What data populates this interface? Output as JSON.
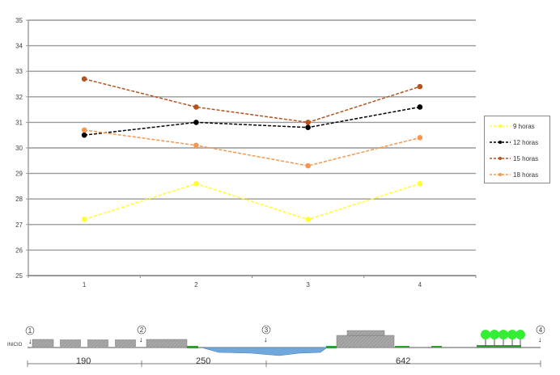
{
  "chart_data": {
    "type": "line",
    "title": "",
    "xlabel": "",
    "ylabel": "",
    "categories": [
      "1",
      "2",
      "3",
      "4"
    ],
    "ylim": [
      25,
      35
    ],
    "yticks": [
      "25",
      "26",
      "27",
      "28",
      "29",
      "30",
      "31",
      "32",
      "33",
      "34",
      "35"
    ],
    "grid": true,
    "legend_position": "right",
    "series": [
      {
        "name": "9 horas",
        "color": "#ffff33",
        "values": [
          27.2,
          28.6,
          27.2,
          28.6
        ]
      },
      {
        "name": "12 horas",
        "color": "#000000",
        "values": [
          30.5,
          31.0,
          30.8,
          31.6
        ]
      },
      {
        "name": "15 horas",
        "color": "#b5531f",
        "values": [
          32.7,
          31.6,
          31.0,
          32.4
        ]
      },
      {
        "name": "18 horas",
        "color": "#f7964f",
        "values": [
          30.7,
          30.1,
          29.3,
          30.4
        ]
      }
    ]
  },
  "legend": {
    "items": [
      {
        "label": "9 horas"
      },
      {
        "label": "12 horas"
      },
      {
        "label": "15 horas"
      },
      {
        "label": "18 horas"
      }
    ]
  },
  "diagram": {
    "start_label": "INICIO",
    "points": [
      "1",
      "2",
      "3",
      "4"
    ],
    "distances": [
      "190",
      "250",
      "642"
    ]
  }
}
